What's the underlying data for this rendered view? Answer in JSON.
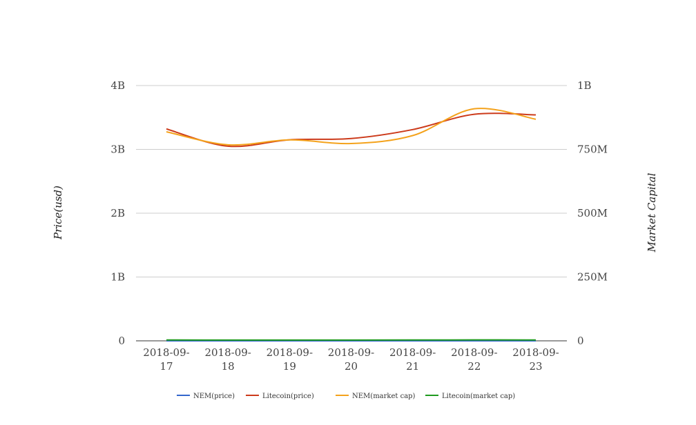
{
  "chart_data": {
    "type": "line",
    "categories": [
      "2018-09-17",
      "2018-09-18",
      "2018-09-19",
      "2018-09-20",
      "2018-09-21",
      "2018-09-22",
      "2018-09-23"
    ],
    "x_tick_labels": [
      [
        "2018-09-",
        "17"
      ],
      [
        "2018-09-",
        "18"
      ],
      [
        "2018-09-",
        "19"
      ],
      [
        "2018-09-",
        "20"
      ],
      [
        "2018-09-",
        "21"
      ],
      [
        "2018-09-",
        "22"
      ],
      [
        "2018-09-",
        "23"
      ]
    ],
    "y_left": {
      "label": "Price(usd)",
      "ylim": [
        0,
        4000000000
      ],
      "ticks": [
        0,
        1000000000,
        2000000000,
        3000000000,
        4000000000
      ],
      "tick_labels": [
        "0",
        "1B",
        "2B",
        "3B",
        "4B"
      ]
    },
    "y_right": {
      "label": "Market Capital",
      "ylim": [
        0,
        1000000000
      ],
      "ticks": [
        0,
        250000000,
        500000000,
        750000000,
        1000000000
      ],
      "tick_labels": [
        "0",
        "250M",
        "500M",
        "750M",
        "1B"
      ]
    },
    "series": [
      {
        "name": "NEM(price)",
        "color": "#3366cc",
        "axis": "left",
        "values": [
          0.06,
          0.06,
          0.07,
          0.08,
          0.08,
          0.08,
          0.09
        ]
      },
      {
        "name": "Litecoin(price)",
        "color": "#cc3a1a",
        "axis": "left",
        "values": [
          3320000000,
          3050000000,
          3150000000,
          3170000000,
          3310000000,
          3550000000,
          3540000000
        ]
      },
      {
        "name": "NEM(market cap)",
        "color": "#f4a21b",
        "axis": "right",
        "values": [
          819000000,
          768000000,
          787000000,
          773000000,
          804000000,
          909000000,
          868000000
        ]
      },
      {
        "name": "Litecoin(market cap)",
        "color": "#1e9a1e",
        "axis": "right",
        "values": [
          3300000,
          3050000,
          3150000,
          3170000,
          3310000,
          3550000,
          3540000
        ]
      }
    ],
    "grid": true,
    "legend_position": "bottom"
  }
}
